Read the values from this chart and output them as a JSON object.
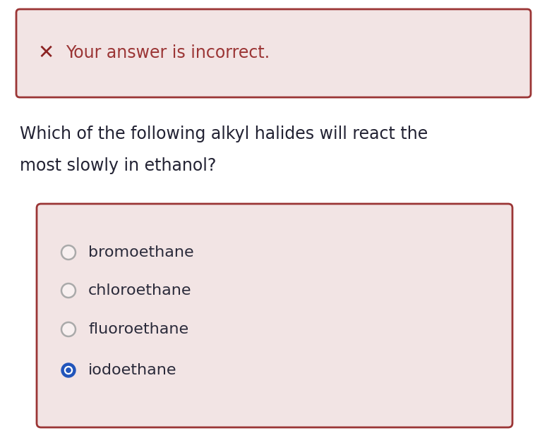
{
  "bg_color": "#ffffff",
  "feedback_box_color": "#f2e4e4",
  "feedback_box_border": "#9b3535",
  "feedback_icon": "✕",
  "feedback_icon_color": "#8b2222",
  "feedback_text": "Your answer is incorrect.",
  "feedback_text_color": "#9b3535",
  "question_text_line1": "Which of the following alkyl halides will react the",
  "question_text_line2": "most slowly in ethanol?",
  "question_text_color": "#222233",
  "options_box_color": "#f2e4e4",
  "options_box_border": "#9b3535",
  "options": [
    "bromoethane",
    "chloroethane",
    "fluoroethane",
    "iodoethane"
  ],
  "options_text_color": "#2a2a3a",
  "selected_option_index": 3,
  "radio_unselected_edge": "#aaaaaa",
  "radio_unselected_fill": "#f8f0f0",
  "radio_selected_fill": "#2255bb",
  "radio_selected_dot": "#ffffff",
  "figwidth": 7.92,
  "figheight": 6.31,
  "dpi": 100
}
